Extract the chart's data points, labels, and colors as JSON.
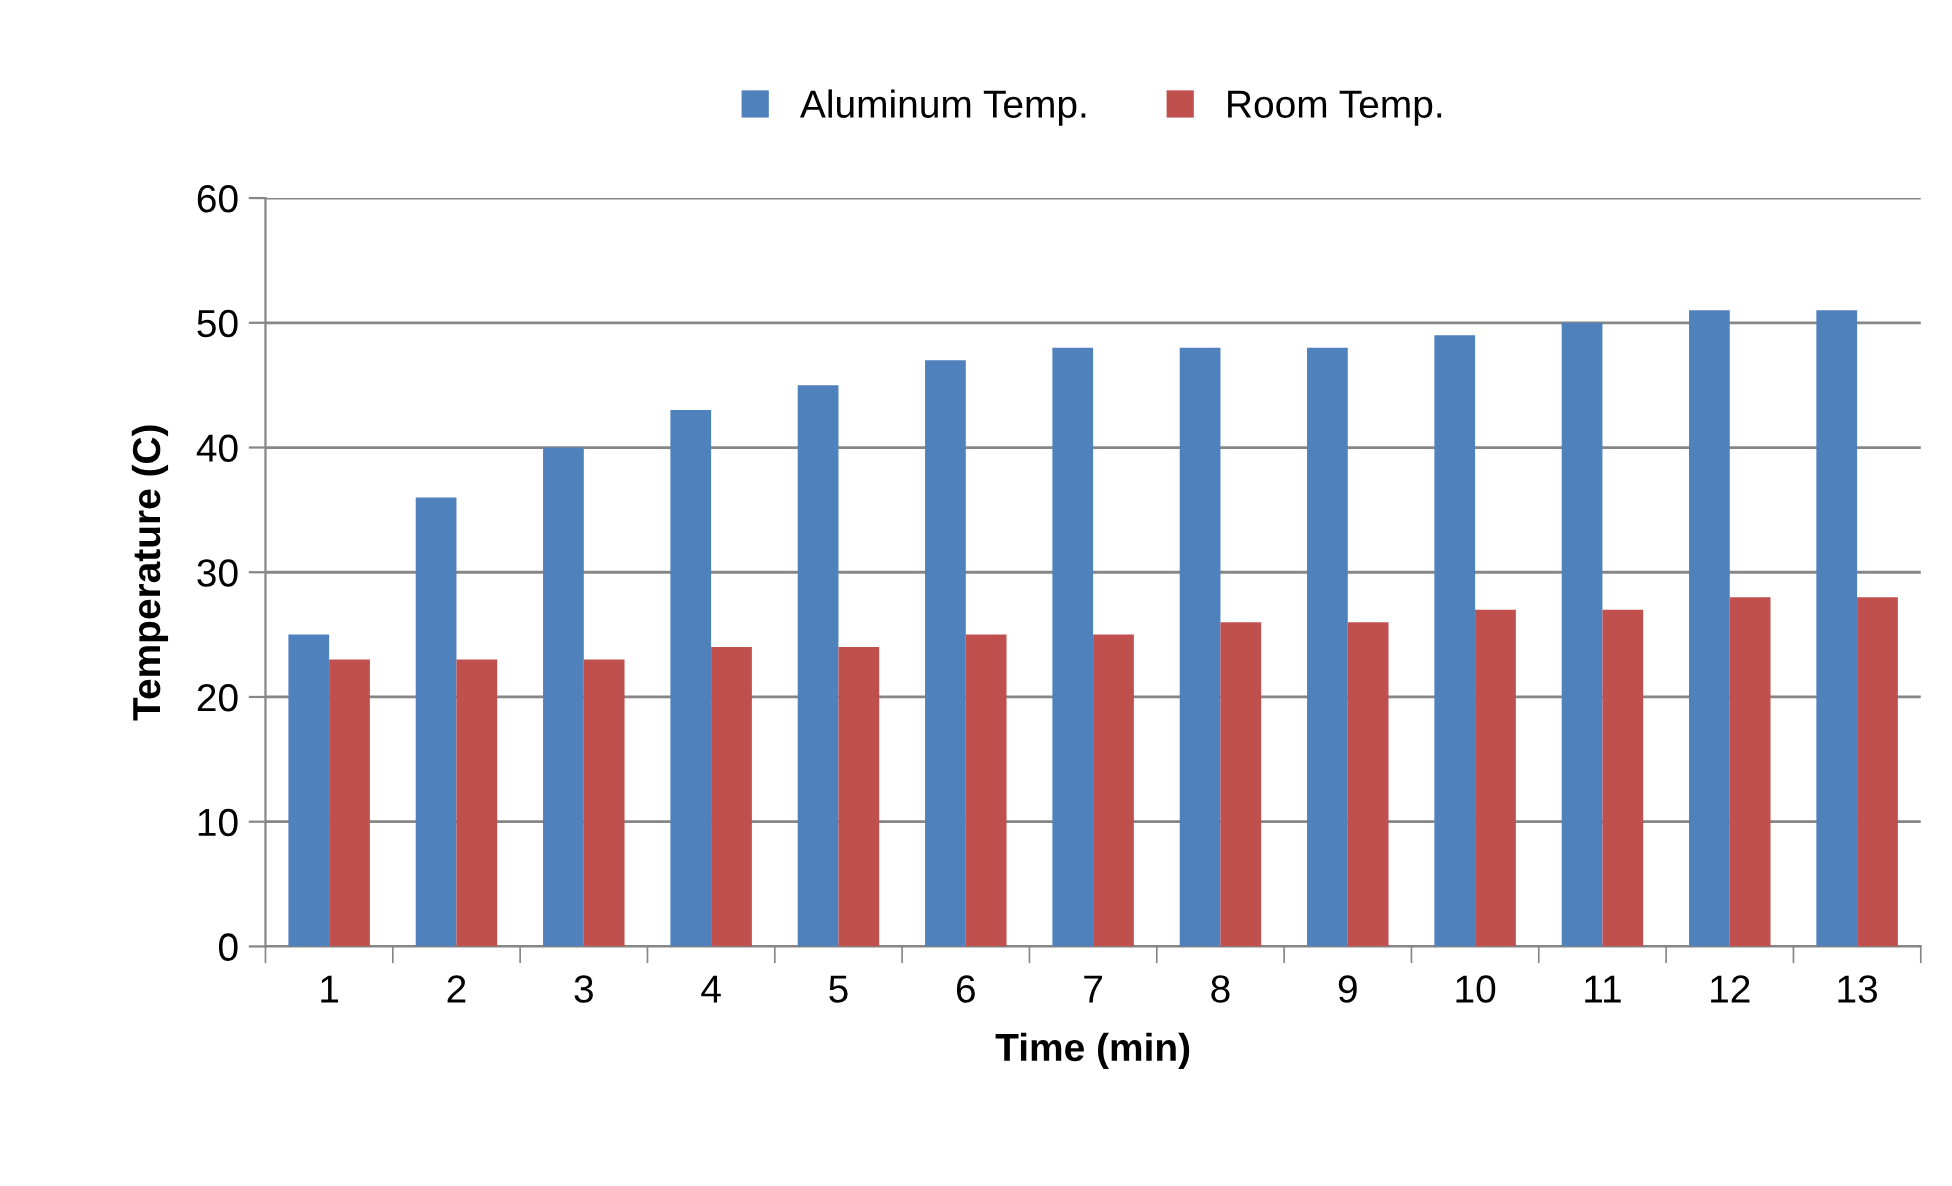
{
  "chart_data": {
    "type": "bar",
    "xlabel": "Time (min)",
    "ylabel": "Temperature (C)",
    "categories": [
      "1",
      "2",
      "3",
      "4",
      "5",
      "6",
      "7",
      "8",
      "9",
      "10",
      "11",
      "12",
      "13"
    ],
    "series": [
      {
        "name": "Aluminum Temp.",
        "color": "#4f81bd",
        "values": [
          25,
          36,
          40,
          43,
          45,
          47,
          48,
          48,
          48,
          49,
          50,
          51,
          51
        ]
      },
      {
        "name": "Room Temp.",
        "color": "#c0504d",
        "values": [
          23,
          23,
          23,
          24,
          24,
          25,
          25,
          26,
          26,
          27,
          27,
          28,
          28
        ]
      }
    ],
    "ylim": [
      0,
      60
    ],
    "yticks": [
      0,
      10,
      20,
      30,
      40,
      50,
      60
    ],
    "grid": "y",
    "legend": "top"
  }
}
